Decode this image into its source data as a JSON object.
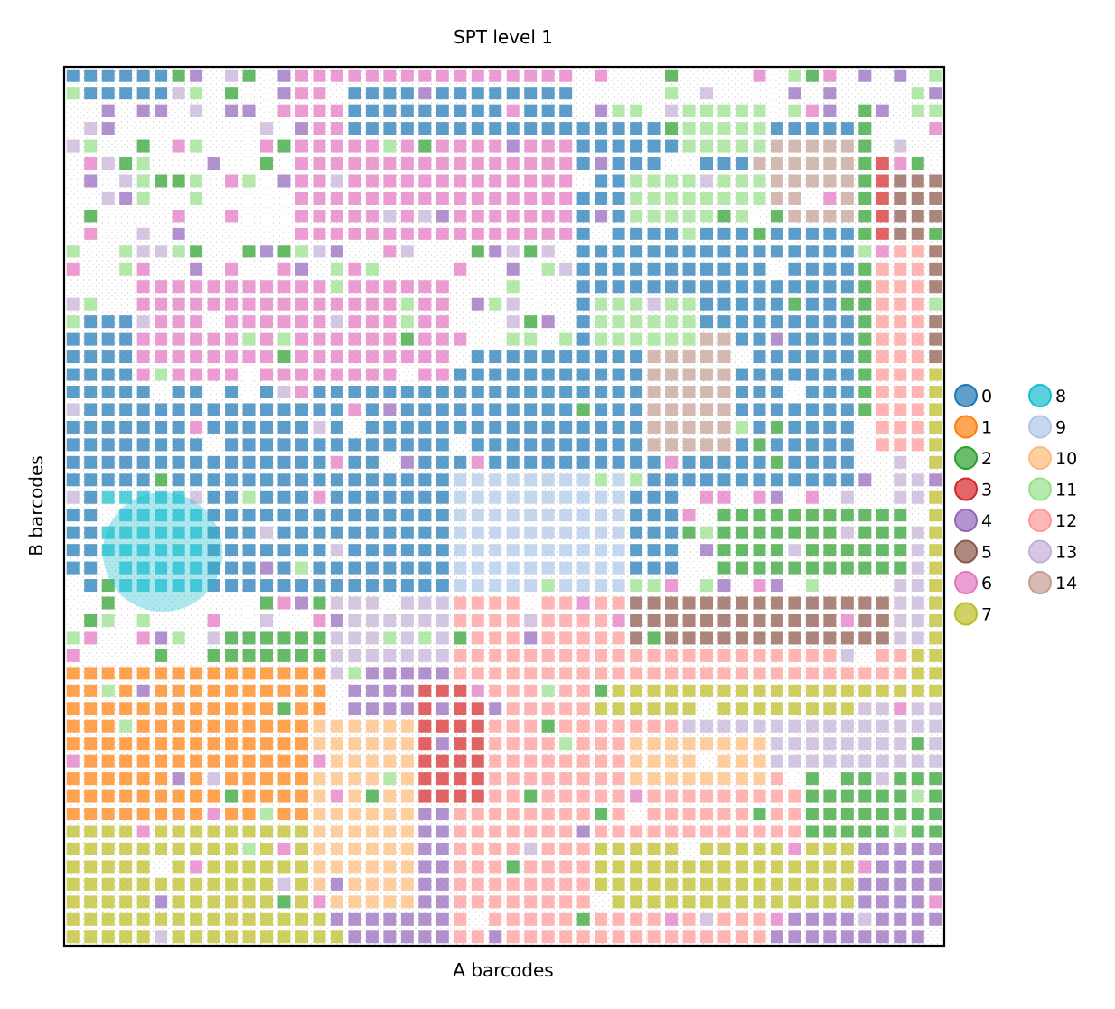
{
  "chart_data": {
    "type": "heatmap",
    "title": "SPT level 1",
    "xlabel": "A barcodes",
    "ylabel": "B barcodes",
    "x_ticks": "none",
    "y_ticks": "none",
    "grid": false,
    "legend_placement": "right",
    "legend_columns": 2,
    "clusters": [
      "0",
      "1",
      "2",
      "3",
      "4",
      "5",
      "6",
      "7",
      "8",
      "9",
      "10",
      "11",
      "12",
      "13",
      "14"
    ],
    "colors": [
      "#1f77b4",
      "#ff7f0e",
      "#2ca02c",
      "#d62728",
      "#9467bd",
      "#8c564b",
      "#e377c2",
      "#bcbd22",
      "#17becf",
      "#aec7e8",
      "#ffbb78",
      "#98df8a",
      "#ff9896",
      "#c5b0d5",
      "#c49c94"
    ],
    "grid_size": [
      50,
      50
    ],
    "regions": [
      {
        "cluster": "0",
        "x": [
          0,
          6
        ],
        "y": [
          0,
          2
        ],
        "note": "top-left edge"
      },
      {
        "cluster": "6",
        "x": [
          13,
          29
        ],
        "y": [
          0,
          10
        ]
      },
      {
        "cluster": "0",
        "x": [
          16,
          29
        ],
        "y": [
          1,
          4
        ]
      },
      {
        "cluster": "0",
        "x": [
          29,
          45
        ],
        "y": [
          3,
          17
        ]
      },
      {
        "cluster": "0",
        "x": [
          0,
          22
        ],
        "y": [
          14,
          30
        ]
      },
      {
        "cluster": "6",
        "x": [
          4,
          22
        ],
        "y": [
          12,
          18
        ]
      },
      {
        "cluster": "0",
        "x": [
          22,
          35
        ],
        "y": [
          16,
          29
        ]
      },
      {
        "cluster": "0",
        "x": [
          35,
          45
        ],
        "y": [
          15,
          24
        ]
      },
      {
        "cluster": "14",
        "x": [
          33,
          38
        ],
        "y": [
          15,
          22
        ]
      },
      {
        "cluster": "14",
        "x": [
          39,
          46
        ],
        "y": [
          4,
          9
        ]
      },
      {
        "cluster": "11",
        "x": [
          35,
          40
        ],
        "y": [
          2,
          5
        ]
      },
      {
        "cluster": "5",
        "x": [
          46,
          50
        ],
        "y": [
          6,
          17
        ]
      },
      {
        "cluster": "3",
        "x": [
          46,
          47
        ],
        "y": [
          5,
          13
        ]
      },
      {
        "cluster": "2",
        "x": [
          45,
          46
        ],
        "y": [
          2,
          20
        ]
      },
      {
        "cluster": "8",
        "x": [
          2,
          8
        ],
        "y": [
          24,
          30
        ]
      },
      {
        "cluster": "9",
        "x": [
          22,
          32
        ],
        "y": [
          23,
          32
        ]
      },
      {
        "cluster": "13",
        "x": [
          15,
          27
        ],
        "y": [
          30,
          35
        ]
      },
      {
        "cluster": "2",
        "x": [
          8,
          15
        ],
        "y": [
          32,
          34
        ]
      },
      {
        "cluster": "1",
        "x": [
          0,
          15
        ],
        "y": [
          34,
          44
        ]
      },
      {
        "cluster": "7",
        "x": [
          0,
          16
        ],
        "y": [
          43,
          50
        ]
      },
      {
        "cluster": "12",
        "x": [
          22,
          50
        ],
        "y": [
          30,
          38
        ]
      },
      {
        "cluster": "12",
        "x": [
          22,
          42
        ],
        "y": [
          37,
          50
        ]
      },
      {
        "cluster": "5",
        "x": [
          32,
          47
        ],
        "y": [
          30,
          33
        ]
      },
      {
        "cluster": "7",
        "x": [
          30,
          50
        ],
        "y": [
          35,
          37
        ]
      },
      {
        "cluster": "4",
        "x": [
          16,
          22
        ],
        "y": [
          34,
          50
        ]
      },
      {
        "cluster": "3",
        "x": [
          20,
          24
        ],
        "y": [
          35,
          42
        ]
      },
      {
        "cluster": "10",
        "x": [
          14,
          20
        ],
        "y": [
          37,
          48
        ]
      },
      {
        "cluster": "13",
        "x": [
          35,
          45
        ],
        "y": [
          37,
          40
        ]
      },
      {
        "cluster": "13",
        "x": [
          45,
          50
        ],
        "y": [
          36,
          46
        ]
      },
      {
        "cluster": "2",
        "x": [
          42,
          50
        ],
        "y": [
          40,
          44
        ]
      },
      {
        "cluster": "4",
        "x": [
          40,
          50
        ],
        "y": [
          44,
          50
        ]
      },
      {
        "cluster": "7",
        "x": [
          30,
          45
        ],
        "y": [
          44,
          48
        ]
      },
      {
        "cluster": "10",
        "x": [
          32,
          40
        ],
        "y": [
          38,
          41
        ]
      },
      {
        "cluster": "11",
        "x": [
          32,
          40
        ],
        "y": [
          6,
          9
        ]
      },
      {
        "cluster": "11",
        "x": [
          30,
          36
        ],
        "y": [
          13,
          16
        ]
      },
      {
        "cluster": "7",
        "x": [
          48,
          50
        ],
        "y": [
          17,
          36
        ]
      },
      {
        "cluster": "13",
        "x": [
          47,
          49
        ],
        "y": [
          20,
          33
        ]
      },
      {
        "cluster": "2",
        "x": [
          37,
          48
        ],
        "y": [
          25,
          29
        ]
      },
      {
        "cluster": "12",
        "x": [
          46,
          49
        ],
        "y": [
          10,
          22
        ]
      }
    ]
  }
}
